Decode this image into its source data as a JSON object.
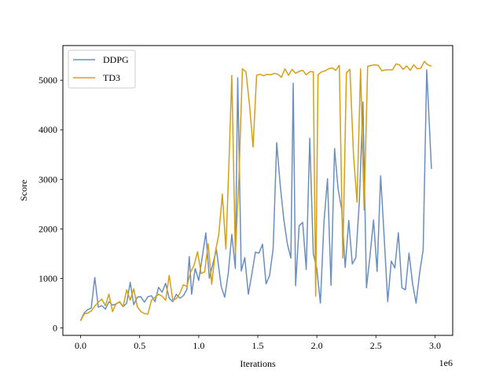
{
  "chart_data": {
    "type": "line",
    "title": "",
    "xlabel": "Iterations",
    "ylabel": "Score",
    "x_offset_label": "1e6",
    "xlim": [
      -0.15,
      3.15
    ],
    "ylim": [
      -150,
      5700
    ],
    "xticks": [
      0.0,
      0.5,
      1.0,
      1.5,
      2.0,
      2.5,
      3.0
    ],
    "xtick_labels": [
      "0.0",
      "0.5",
      "1.0",
      "1.5",
      "2.0",
      "2.5",
      "3.0"
    ],
    "yticks": [
      0,
      1000,
      2000,
      3000,
      4000,
      5000
    ],
    "ytick_labels": [
      "0",
      "1000",
      "2000",
      "3000",
      "4000",
      "5000"
    ],
    "grid": false,
    "legend": "top-left",
    "series": [
      {
        "name": "DDPG",
        "color": "#6a8ebf",
        "points": [
          [
            0.0,
            150
          ],
          [
            0.03,
            300
          ],
          [
            0.06,
            370
          ],
          [
            0.09,
            400
          ],
          [
            0.12,
            1020
          ],
          [
            0.15,
            420
          ],
          [
            0.18,
            450
          ],
          [
            0.21,
            380
          ],
          [
            0.24,
            530
          ],
          [
            0.27,
            460
          ],
          [
            0.3,
            480
          ],
          [
            0.33,
            530
          ],
          [
            0.36,
            430
          ],
          [
            0.39,
            500
          ],
          [
            0.42,
            920
          ],
          [
            0.45,
            470
          ],
          [
            0.48,
            620
          ],
          [
            0.51,
            630
          ],
          [
            0.54,
            520
          ],
          [
            0.57,
            630
          ],
          [
            0.6,
            650
          ],
          [
            0.63,
            530
          ],
          [
            0.66,
            820
          ],
          [
            0.69,
            720
          ],
          [
            0.72,
            900
          ],
          [
            0.75,
            600
          ],
          [
            0.78,
            530
          ],
          [
            0.81,
            680
          ],
          [
            0.84,
            600
          ],
          [
            0.87,
            650
          ],
          [
            0.9,
            780
          ],
          [
            0.92,
            1440
          ],
          [
            0.94,
            680
          ],
          [
            0.97,
            1200
          ],
          [
            1.0,
            960
          ],
          [
            1.03,
            1430
          ],
          [
            1.06,
            1920
          ],
          [
            1.09,
            1000
          ],
          [
            1.12,
            1300
          ],
          [
            1.15,
            1580
          ],
          [
            1.19,
            840
          ],
          [
            1.22,
            620
          ],
          [
            1.25,
            1100
          ],
          [
            1.28,
            1890
          ],
          [
            1.31,
            1200
          ],
          [
            1.33,
            5050
          ],
          [
            1.36,
            1150
          ],
          [
            1.39,
            1420
          ],
          [
            1.42,
            680
          ],
          [
            1.45,
            1090
          ],
          [
            1.48,
            1530
          ],
          [
            1.51,
            1510
          ],
          [
            1.54,
            1690
          ],
          [
            1.57,
            890
          ],
          [
            1.6,
            1060
          ],
          [
            1.63,
            1600
          ],
          [
            1.66,
            3740
          ],
          [
            1.69,
            2880
          ],
          [
            1.72,
            2200
          ],
          [
            1.75,
            1700
          ],
          [
            1.78,
            1410
          ],
          [
            1.8,
            4940
          ],
          [
            1.82,
            850
          ],
          [
            1.85,
            2060
          ],
          [
            1.88,
            2130
          ],
          [
            1.91,
            1180
          ],
          [
            1.94,
            3830
          ],
          [
            1.97,
            1500
          ],
          [
            2.0,
            1190
          ],
          [
            2.03,
            500
          ],
          [
            2.06,
            2130
          ],
          [
            2.09,
            3010
          ],
          [
            2.12,
            860
          ],
          [
            2.15,
            3620
          ],
          [
            2.18,
            2800
          ],
          [
            2.21,
            2400
          ],
          [
            2.24,
            1220
          ],
          [
            2.27,
            2170
          ],
          [
            2.3,
            1290
          ],
          [
            2.33,
            1420
          ],
          [
            2.36,
            2570
          ],
          [
            2.39,
            4560
          ],
          [
            2.42,
            810
          ],
          [
            2.45,
            1460
          ],
          [
            2.48,
            2180
          ],
          [
            2.51,
            1140
          ],
          [
            2.54,
            3070
          ],
          [
            2.57,
            1830
          ],
          [
            2.6,
            530
          ],
          [
            2.63,
            1350
          ],
          [
            2.66,
            1210
          ],
          [
            2.69,
            1920
          ],
          [
            2.72,
            810
          ],
          [
            2.75,
            770
          ],
          [
            2.78,
            1510
          ],
          [
            2.81,
            900
          ],
          [
            2.84,
            500
          ],
          [
            2.87,
            1110
          ],
          [
            2.9,
            1580
          ],
          [
            2.93,
            5210
          ],
          [
            2.97,
            3210
          ]
        ]
      },
      {
        "name": "TD3",
        "color": "#d4a017",
        "points": [
          [
            0.0,
            140
          ],
          [
            0.03,
            280
          ],
          [
            0.06,
            300
          ],
          [
            0.09,
            340
          ],
          [
            0.12,
            440
          ],
          [
            0.15,
            520
          ],
          [
            0.18,
            580
          ],
          [
            0.21,
            450
          ],
          [
            0.24,
            680
          ],
          [
            0.27,
            330
          ],
          [
            0.3,
            490
          ],
          [
            0.33,
            520
          ],
          [
            0.36,
            430
          ],
          [
            0.39,
            770
          ],
          [
            0.42,
            560
          ],
          [
            0.45,
            790
          ],
          [
            0.48,
            430
          ],
          [
            0.51,
            330
          ],
          [
            0.54,
            290
          ],
          [
            0.57,
            280
          ],
          [
            0.6,
            560
          ],
          [
            0.63,
            620
          ],
          [
            0.66,
            680
          ],
          [
            0.69,
            640
          ],
          [
            0.72,
            560
          ],
          [
            0.75,
            1060
          ],
          [
            0.78,
            560
          ],
          [
            0.81,
            590
          ],
          [
            0.84,
            700
          ],
          [
            0.87,
            870
          ],
          [
            0.9,
            840
          ],
          [
            0.93,
            1120
          ],
          [
            0.96,
            1260
          ],
          [
            0.99,
            1540
          ],
          [
            1.02,
            1100
          ],
          [
            1.05,
            1130
          ],
          [
            1.08,
            1700
          ],
          [
            1.11,
            880
          ],
          [
            1.14,
            1520
          ],
          [
            1.17,
            1890
          ],
          [
            1.2,
            2700
          ],
          [
            1.23,
            1590
          ],
          [
            1.26,
            3620
          ],
          [
            1.28,
            5100
          ],
          [
            1.31,
            1500
          ],
          [
            1.34,
            3000
          ],
          [
            1.37,
            5230
          ],
          [
            1.4,
            5170
          ],
          [
            1.43,
            4500
          ],
          [
            1.46,
            3650
          ],
          [
            1.49,
            5100
          ],
          [
            1.52,
            5120
          ],
          [
            1.55,
            5090
          ],
          [
            1.58,
            5120
          ],
          [
            1.61,
            5110
          ],
          [
            1.64,
            5140
          ],
          [
            1.67,
            5120
          ],
          [
            1.7,
            5060
          ],
          [
            1.73,
            5230
          ],
          [
            1.76,
            5100
          ],
          [
            1.79,
            5220
          ],
          [
            1.82,
            5140
          ],
          [
            1.85,
            5180
          ],
          [
            1.88,
            5200
          ],
          [
            1.91,
            5110
          ],
          [
            1.94,
            5170
          ],
          [
            1.97,
            5170
          ],
          [
            1.99,
            640
          ],
          [
            2.01,
            5110
          ],
          [
            2.04,
            5170
          ],
          [
            2.07,
            5190
          ],
          [
            2.1,
            5230
          ],
          [
            2.13,
            5250
          ],
          [
            2.16,
            5200
          ],
          [
            2.19,
            5300
          ],
          [
            2.22,
            1410
          ],
          [
            2.25,
            5150
          ],
          [
            2.28,
            5220
          ],
          [
            2.31,
            3500
          ],
          [
            2.34,
            2540
          ],
          [
            2.37,
            5230
          ],
          [
            2.4,
            2380
          ],
          [
            2.43,
            5280
          ],
          [
            2.46,
            5300
          ],
          [
            2.49,
            5310
          ],
          [
            2.52,
            5300
          ],
          [
            2.55,
            5190
          ],
          [
            2.58,
            5210
          ],
          [
            2.61,
            5210
          ],
          [
            2.64,
            5210
          ],
          [
            2.67,
            5330
          ],
          [
            2.7,
            5310
          ],
          [
            2.73,
            5220
          ],
          [
            2.76,
            5290
          ],
          [
            2.79,
            5200
          ],
          [
            2.82,
            5310
          ],
          [
            2.85,
            5230
          ],
          [
            2.88,
            5240
          ],
          [
            2.91,
            5380
          ],
          [
            2.94,
            5310
          ],
          [
            2.97,
            5280
          ]
        ]
      }
    ]
  }
}
